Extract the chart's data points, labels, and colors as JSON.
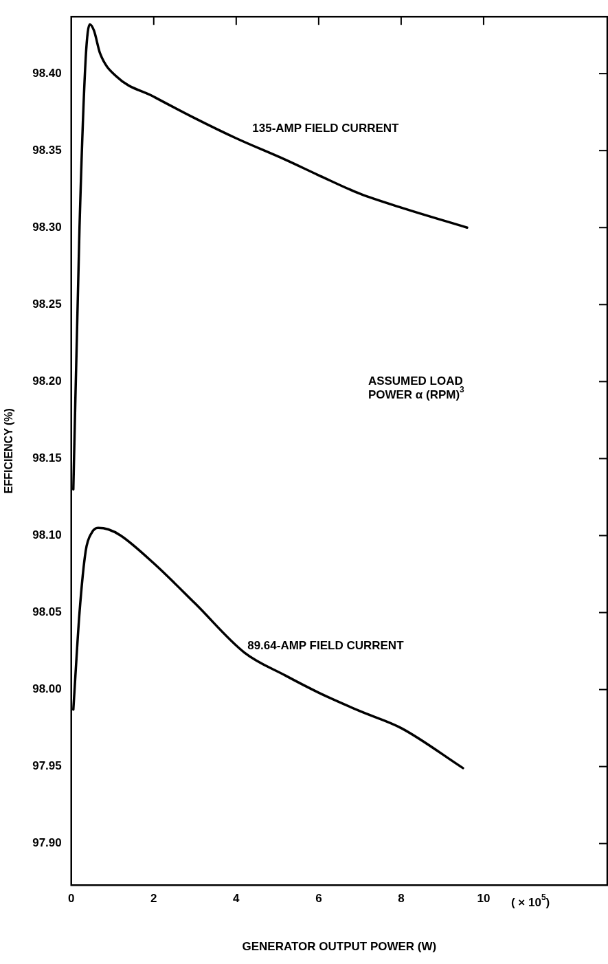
{
  "chart_data": {
    "type": "line",
    "xlabel": "GENERATOR OUTPUT POWER (W)",
    "ylabel": "EFFICIENCY (%)",
    "xlim": [
      0,
      13
    ],
    "xticks": [
      0,
      2,
      4,
      6,
      8,
      10
    ],
    "ylim": [
      97.873,
      98.437
    ],
    "yticks": [
      {
        "value": 97.9,
        "label": "97.90"
      },
      {
        "value": 97.95,
        "label": "97.95"
      },
      {
        "value": 98.0,
        "label": "98.00"
      },
      {
        "value": 98.05,
        "label": "98.05"
      },
      {
        "value": 98.1,
        "label": "98.10"
      },
      {
        "value": 98.15,
        "label": "98.15"
      },
      {
        "value": 98.2,
        "label": "98.20"
      },
      {
        "value": 98.25,
        "label": "98.25"
      },
      {
        "value": 98.3,
        "label": "98.30"
      },
      {
        "value": 98.35,
        "label": "98.35"
      },
      {
        "value": 98.4,
        "label": "98.40"
      }
    ],
    "grid": false,
    "legend": false,
    "marker": "none",
    "line_style": "solid",
    "series": [
      {
        "name": "135-AMP FIELD CURRENT",
        "color": "#000000",
        "x": [
          0.05,
          0.2,
          0.35,
          0.45,
          0.55,
          0.7,
          1.1,
          2,
          3,
          4,
          5.2,
          6,
          7,
          8,
          9.6
        ],
        "values": [
          98.13,
          98.3,
          98.41,
          98.432,
          98.428,
          98.413,
          98.398,
          98.385,
          98.371,
          98.358,
          98.344,
          98.334,
          98.322,
          98.313,
          98.3
        ]
      },
      {
        "name": "89.64-AMP FIELD CURRENT",
        "color": "#000000",
        "x": [
          0.05,
          0.2,
          0.35,
          0.5,
          0.65,
          0.9,
          1.2,
          2,
          3,
          4.2,
          5.2,
          6,
          7,
          8,
          9.5
        ],
        "values": [
          97.987,
          98.05,
          98.09,
          98.102,
          98.105,
          98.104,
          98.1,
          98.082,
          98.056,
          98.024,
          98.009,
          97.998,
          97.986,
          97.975,
          97.949
        ]
      }
    ],
    "annotations": [
      "ASSUMED LOAD POWER α (RPM)$^{3}$",
      "( × 10$^{5}$)"
    ]
  }
}
